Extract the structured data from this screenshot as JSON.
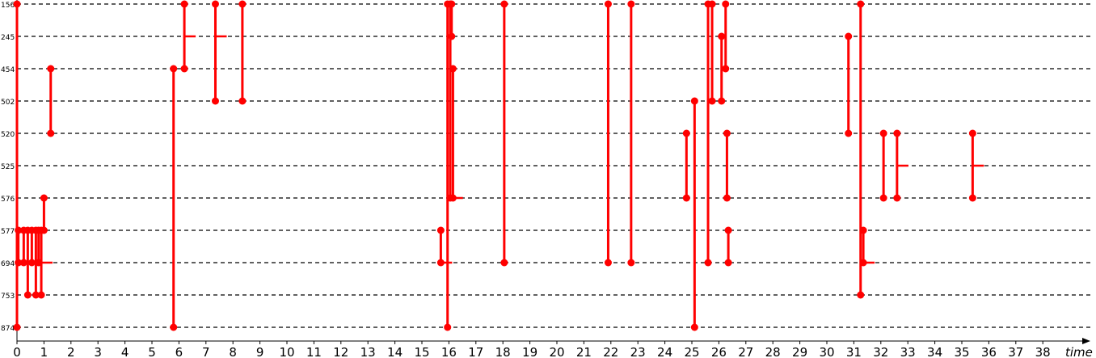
{
  "chart_data": {
    "type": "timeline",
    "xlabel": "time",
    "x_ticks": [
      0,
      1,
      2,
      3,
      4,
      5,
      6,
      7,
      8,
      9,
      10,
      11,
      12,
      13,
      14,
      15,
      16,
      17,
      18,
      19,
      20,
      21,
      22,
      23,
      24,
      25,
      26,
      27,
      28,
      29,
      30,
      31,
      32,
      33,
      34,
      35,
      36,
      37,
      38
    ],
    "xlim": [
      0,
      39.5
    ],
    "rows": [
      "156",
      "245",
      "454",
      "502",
      "520",
      "525",
      "576",
      "577",
      "694",
      "753",
      "874"
    ],
    "grid": "horizontal dashed",
    "color": "#ff0000",
    "messages": [
      {
        "x": 0.0,
        "rows": [
          "156",
          "874"
        ],
        "dots": true
      },
      {
        "x": 0.05,
        "rows": [
          "577",
          "694"
        ],
        "dots": true
      },
      {
        "x": 0.25,
        "rows": [
          "577",
          "694"
        ],
        "dots": true
      },
      {
        "x": 0.4,
        "rows": [
          "577",
          "753"
        ],
        "dots": true
      },
      {
        "x": 0.55,
        "rows": [
          "577",
          "694"
        ],
        "dots": true
      },
      {
        "x": 0.7,
        "rows": [
          "577",
          "753"
        ],
        "dots": true
      },
      {
        "x": 0.8,
        "rows": [
          "577",
          "694"
        ],
        "dots": true
      },
      {
        "x": 0.9,
        "rows": [
          "577",
          "753"
        ],
        "dots": true
      },
      {
        "x": 1.0,
        "rows": [
          "576",
          "577"
        ],
        "dots": true
      },
      {
        "x": 1.25,
        "rows": [
          "454",
          "520"
        ],
        "dots": true
      },
      {
        "x": 5.8,
        "rows": [
          "454",
          "874"
        ],
        "dots": true
      },
      {
        "x": 6.2,
        "rows": [
          "156",
          "454"
        ],
        "dots": true
      },
      {
        "x": 7.35,
        "rows": [
          "156",
          "502"
        ],
        "dots": true
      },
      {
        "x": 8.35,
        "rows": [
          "156",
          "502"
        ],
        "dots": true
      },
      {
        "x": 15.7,
        "rows": [
          "577",
          "694"
        ],
        "dots": true
      },
      {
        "x": 15.95,
        "rows": [
          "156",
          "874"
        ],
        "dots": true
      },
      {
        "x": 16.05,
        "rows": [
          "156",
          "576"
        ],
        "dots": true
      },
      {
        "x": 16.1,
        "rows": [
          "156",
          "245"
        ],
        "dots": true
      },
      {
        "x": 16.15,
        "rows": [
          "454",
          "576"
        ],
        "dots": true
      },
      {
        "x": 18.05,
        "rows": [
          "156",
          "694"
        ],
        "dots": true
      },
      {
        "x": 21.9,
        "rows": [
          "156",
          "694"
        ],
        "dots": true
      },
      {
        "x": 22.75,
        "rows": [
          "156",
          "694"
        ],
        "dots": true
      },
      {
        "x": 24.8,
        "rows": [
          "520",
          "576"
        ],
        "dots": true
      },
      {
        "x": 25.1,
        "rows": [
          "502",
          "874"
        ],
        "dots": true
      },
      {
        "x": 25.6,
        "rows": [
          "156",
          "694"
        ],
        "dots": true
      },
      {
        "x": 25.75,
        "rows": [
          "156",
          "502"
        ],
        "dots": true
      },
      {
        "x": 26.1,
        "rows": [
          "245",
          "502"
        ],
        "dots": true
      },
      {
        "x": 26.25,
        "rows": [
          "156",
          "454"
        ],
        "dots": true
      },
      {
        "x": 26.3,
        "rows": [
          "520",
          "576"
        ],
        "dots": true
      },
      {
        "x": 26.35,
        "rows": [
          "577",
          "694"
        ],
        "dots": true
      },
      {
        "x": 30.8,
        "rows": [
          "245",
          "520"
        ],
        "dots": true
      },
      {
        "x": 31.25,
        "rows": [
          "156",
          "753"
        ],
        "dots": true
      },
      {
        "x": 31.35,
        "rows": [
          "577",
          "694"
        ],
        "dots": true
      },
      {
        "x": 32.1,
        "rows": [
          "520",
          "576"
        ],
        "dots": true
      },
      {
        "x": 32.6,
        "rows": [
          "520",
          "576"
        ],
        "dots": true
      },
      {
        "x": 35.4,
        "rows": [
          "520",
          "576"
        ],
        "dots": true
      }
    ],
    "ticks": [
      {
        "x": 0.7,
        "row": "577"
      },
      {
        "x": 0.9,
        "row": "694"
      },
      {
        "x": 6.2,
        "row": "245"
      },
      {
        "x": 7.35,
        "row": "245"
      },
      {
        "x": 15.7,
        "row": "694"
      },
      {
        "x": 16.1,
        "row": "576"
      },
      {
        "x": 31.35,
        "row": "694"
      },
      {
        "x": 32.6,
        "row": "525"
      },
      {
        "x": 35.4,
        "row": "525"
      }
    ]
  }
}
